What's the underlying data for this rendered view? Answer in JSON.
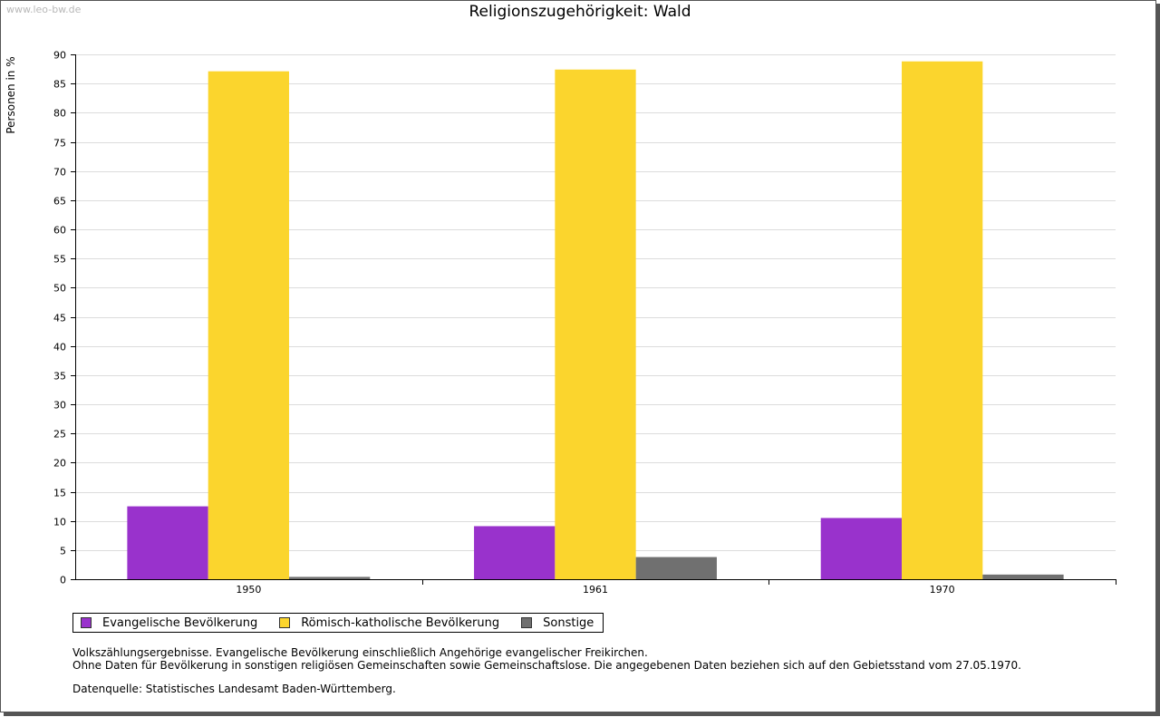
{
  "watermark": "www.leo-bw.de",
  "chart_data": {
    "type": "bar",
    "title": "Religionszugehörigkeit: Wald",
    "xlabel": "",
    "ylabel": "Personen in %",
    "ylim": [
      0,
      90
    ],
    "ytick_step": 5,
    "yticks": [
      "0",
      "5",
      "10",
      "15",
      "20",
      "25",
      "30",
      "35",
      "40",
      "45",
      "50",
      "55",
      "60",
      "65",
      "70",
      "75",
      "80",
      "85",
      "90"
    ],
    "grid": true,
    "legend_position": "bottom-left",
    "categories": [
      "1950",
      "1961",
      "1970"
    ],
    "series": [
      {
        "name": "Evangelische Bevölkerung",
        "color": "#9932cc",
        "values": [
          12.5,
          9.1,
          10.5
        ]
      },
      {
        "name": "Römisch-katholische Bevölkerung",
        "color": "#fbd52d",
        "values": [
          87.1,
          87.4,
          88.8
        ]
      },
      {
        "name": "Sonstige",
        "color": "#707070",
        "values": [
          0.4,
          3.8,
          0.8
        ]
      }
    ]
  },
  "notes": {
    "line1": "Volkszählungsergebnisse. Evangelische Bevölkerung einschließlich Angehörige evangelischer Freikirchen.",
    "line2": "Ohne Daten für Bevölkerung in sonstigen religiösen Gemeinschaften sowie Gemeinschaftslose. Die angegebenen Daten beziehen sich auf den Gebietsstand vom 27.05.1970.",
    "source": "Datenquelle: Statistisches Landesamt Baden-Württemberg."
  }
}
